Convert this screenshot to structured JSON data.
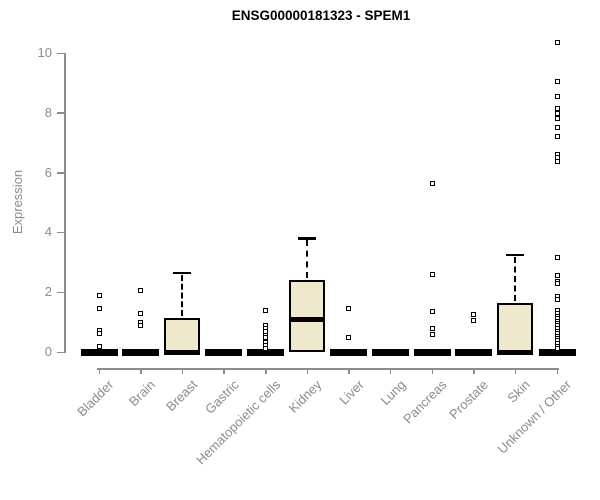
{
  "chart_data": {
    "type": "boxplot",
    "title": "ENSG00000181323 - SPEM1",
    "xlabel": "",
    "ylabel": "Expression",
    "ylim": [
      0,
      10
    ],
    "yticks": [
      0,
      2,
      4,
      6,
      8,
      10
    ],
    "grid": false,
    "legend": "none",
    "colors": {
      "box_fill": "#EEE8CD",
      "box_border": "#000000",
      "median": "#000000",
      "axis": "#8c8c8c",
      "title": "#000000"
    },
    "categories": [
      "Bladder",
      "Brain",
      "Breast",
      "Gastric",
      "Hematopoietic cells",
      "Kidney",
      "Liver",
      "Lung",
      "Pancreas",
      "Prostate",
      "Skin",
      "Unknown / Other"
    ],
    "series": [
      {
        "name": "Bladder",
        "q1": 0,
        "median": 0,
        "q3": 0,
        "whisker_low": 0,
        "whisker_high": 0,
        "outliers": [
          1.9,
          1.45,
          0.72,
          0.63,
          0.17
        ]
      },
      {
        "name": "Brain",
        "q1": 0,
        "median": 0,
        "q3": 0,
        "whisker_low": 0,
        "whisker_high": 0,
        "outliers": [
          2.05,
          1.3,
          0.97,
          0.88
        ]
      },
      {
        "name": "Breast",
        "q1": 0,
        "median": 0,
        "q3": 1.15,
        "whisker_low": 0,
        "whisker_high": 2.65,
        "outliers": []
      },
      {
        "name": "Gastric",
        "q1": 0,
        "median": 0,
        "q3": 0,
        "whisker_low": 0,
        "whisker_high": 0,
        "outliers": []
      },
      {
        "name": "Hematopoietic cells",
        "q1": 0,
        "median": 0,
        "q3": 0,
        "whisker_low": 0,
        "whisker_high": 0,
        "outliers": [
          1.4,
          0.9,
          0.78,
          0.67,
          0.55,
          0.47,
          0.33,
          0.22,
          0.13
        ]
      },
      {
        "name": "Kidney",
        "q1": 0,
        "median": 1.1,
        "q3": 2.4,
        "whisker_low": 0,
        "whisker_high": 3.8,
        "outliers": []
      },
      {
        "name": "Liver",
        "q1": 0,
        "median": 0,
        "q3": 0,
        "whisker_low": 0,
        "whisker_high": 0,
        "outliers": [
          1.45,
          0.5
        ]
      },
      {
        "name": "Lung",
        "q1": 0,
        "median": 0,
        "q3": 0,
        "whisker_low": 0,
        "whisker_high": 0,
        "outliers": []
      },
      {
        "name": "Pancreas",
        "q1": 0,
        "median": 0,
        "q3": 0,
        "whisker_low": 0,
        "whisker_high": 0,
        "outliers": [
          5.65,
          2.6,
          1.35,
          0.77,
          0.6
        ]
      },
      {
        "name": "Prostate",
        "q1": 0,
        "median": 0,
        "q3": 0,
        "whisker_low": 0,
        "whisker_high": 0,
        "outliers": [
          1.27,
          1.07
        ]
      },
      {
        "name": "Skin",
        "q1": 0,
        "median": 0,
        "q3": 1.65,
        "whisker_low": 0,
        "whisker_high": 3.25,
        "outliers": []
      },
      {
        "name": "Unknown / Other",
        "q1": 0,
        "median": 0,
        "q3": 0,
        "whisker_low": 0,
        "whisker_high": 0,
        "outliers": [
          10.35,
          9.05,
          8.55,
          8.15,
          7.97,
          7.8,
          7.5,
          7.2,
          6.62,
          6.5,
          6.38,
          3.15,
          2.57,
          2.37,
          2.28,
          1.87,
          1.77,
          1.4,
          1.28,
          1.2,
          1.12,
          1.03,
          0.95,
          0.87,
          0.78,
          0.7,
          0.62,
          0.53,
          0.45,
          0.37,
          0.28,
          0.2,
          0.12
        ]
      }
    ]
  }
}
